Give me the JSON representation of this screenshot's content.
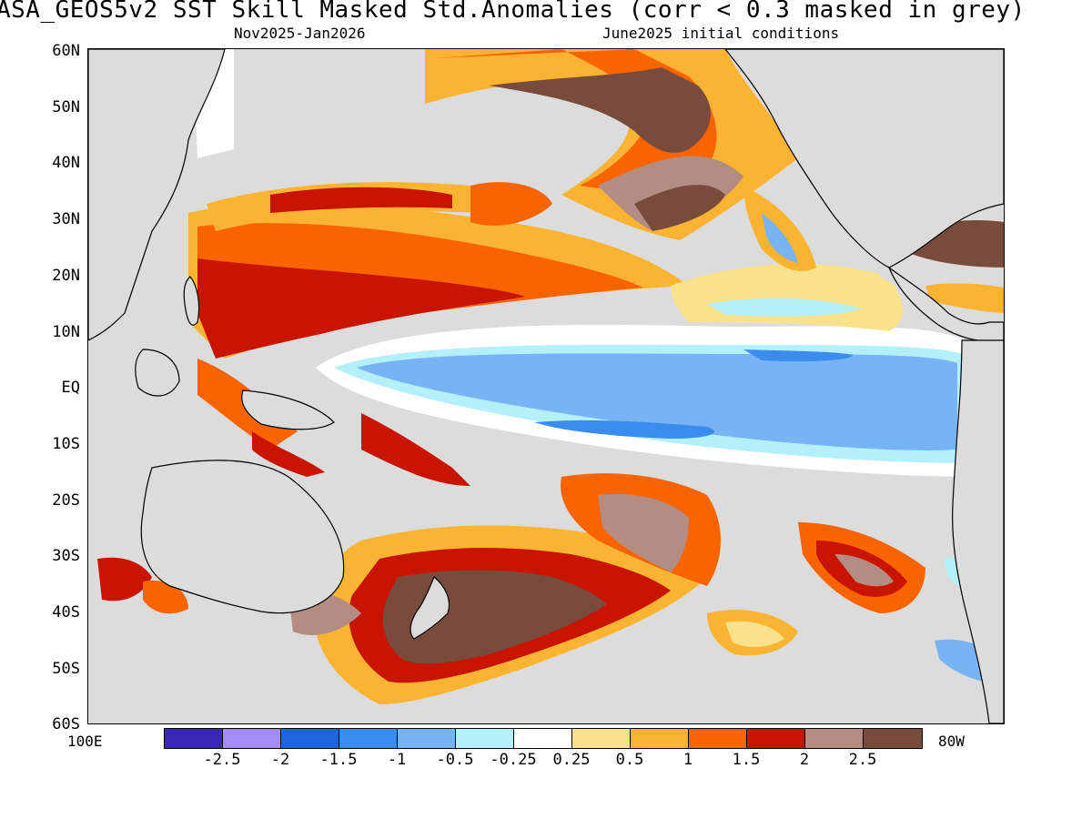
{
  "title": "ASA_GEOS5v2  SST Skill Masked Std.Anomalies (corr < 0.3 masked in grey)",
  "subtitle_left": "Nov2025-Jan2026",
  "subtitle_right": "June2025 initial conditions",
  "lat_labels": [
    "60N",
    "50N",
    "40N",
    "30N",
    "20N",
    "10N",
    "EQ",
    "10S",
    "20S",
    "30S",
    "40S",
    "50S",
    "60S"
  ],
  "lon_left": "100E",
  "lon_right": "80W",
  "legend": {
    "colors": [
      "#3a28b4",
      "#a58cf5",
      "#1e64dc",
      "#3c8cf0",
      "#78b4f5",
      "#b4f0fa",
      "#ffffff",
      "#fae18c",
      "#fab432",
      "#fa6400",
      "#c81400",
      "#b48c82",
      "#784b3c"
    ],
    "ticks": [
      "-2.5",
      "-2",
      "-1.5",
      "-1",
      "-0.5",
      "-0.25",
      "0.25",
      "0.5",
      "1",
      "1.5",
      "2",
      "2.5"
    ]
  }
}
